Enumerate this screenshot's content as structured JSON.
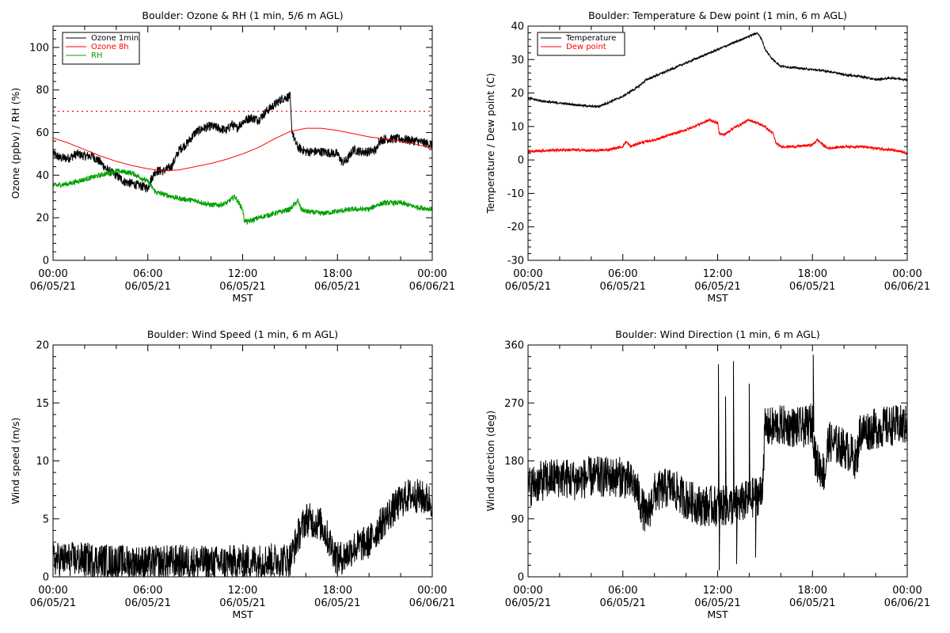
{
  "chart_data": [
    {
      "type": "line",
      "title": "Boulder: Ozone & RH (1 min, 5/6 m AGL)",
      "xlabel": "MST",
      "ylabel": "Ozone (ppbv) / RH (%)",
      "xlim": [
        0,
        24
      ],
      "ylim": [
        0,
        110
      ],
      "yticks": [
        0,
        20,
        40,
        60,
        80,
        100
      ],
      "x_tick_labels": [
        [
          "00:00",
          "06/05/21"
        ],
        [
          "06:00",
          "06/05/21"
        ],
        [
          "12:00",
          "06/05/21"
        ],
        [
          "18:00",
          "06/05/21"
        ],
        [
          "00:00",
          "06/06/21"
        ]
      ],
      "legend_position": "top-left",
      "reference_line": {
        "y": 70,
        "style": "dotted",
        "color": "#ff0000"
      },
      "series": [
        {
          "name": "Ozone 1min",
          "color": "#000000",
          "noise": 2.2,
          "points": [
            [
              0,
              50
            ],
            [
              0.5,
              48
            ],
            [
              1,
              48
            ],
            [
              1.5,
              50
            ],
            [
              2,
              49
            ],
            [
              2.5,
              49
            ],
            [
              3,
              46
            ],
            [
              3.5,
              42
            ],
            [
              4,
              40
            ],
            [
              4.5,
              37
            ],
            [
              5,
              36
            ],
            [
              5.5,
              35
            ],
            [
              6,
              34
            ],
            [
              6.2,
              38
            ],
            [
              6.5,
              42
            ],
            [
              7,
              42
            ],
            [
              7.5,
              44
            ],
            [
              8,
              52
            ],
            [
              8.5,
              55
            ],
            [
              9,
              60
            ],
            [
              9.5,
              62
            ],
            [
              10,
              63
            ],
            [
              10.5,
              62
            ],
            [
              11,
              61
            ],
            [
              11.3,
              64
            ],
            [
              11.6,
              62
            ],
            [
              12,
              65
            ],
            [
              12.5,
              67
            ],
            [
              13,
              66
            ],
            [
              13.5,
              70
            ],
            [
              14,
              73
            ],
            [
              14.5,
              76
            ],
            [
              15,
              77
            ],
            [
              15.1,
              62
            ],
            [
              15.3,
              56
            ],
            [
              15.5,
              53
            ],
            [
              16,
              51
            ],
            [
              17,
              51
            ],
            [
              18,
              50
            ],
            [
              18.3,
              46
            ],
            [
              18.6,
              47
            ],
            [
              19,
              52
            ],
            [
              19.5,
              51
            ],
            [
              20,
              51
            ],
            [
              20.5,
              52
            ],
            [
              20.6,
              56
            ],
            [
              21,
              57
            ],
            [
              22,
              57
            ],
            [
              23,
              56
            ],
            [
              23.6,
              55
            ],
            [
              24,
              54
            ]
          ]
        },
        {
          "name": "Ozone 8h",
          "color": "#ff0000",
          "noise": 0,
          "points": [
            [
              0,
              57.5
            ],
            [
              1,
              55
            ],
            [
              2,
              52
            ],
            [
              3,
              49
            ],
            [
              4,
              46.5
            ],
            [
              5,
              44.5
            ],
            [
              6,
              43
            ],
            [
              7,
              42
            ],
            [
              8,
              42.5
            ],
            [
              9,
              44
            ],
            [
              10,
              45.5
            ],
            [
              11,
              47.5
            ],
            [
              12,
              50
            ],
            [
              13,
              53
            ],
            [
              14,
              57
            ],
            [
              15,
              60.5
            ],
            [
              16,
              62
            ],
            [
              17,
              62
            ],
            [
              18,
              61
            ],
            [
              19,
              59.5
            ],
            [
              20,
              58
            ],
            [
              21,
              57
            ],
            [
              22,
              56
            ],
            [
              23,
              54.5
            ],
            [
              24,
              52.5
            ]
          ]
        },
        {
          "name": "RH",
          "color": "#00a000",
          "noise": 1.2,
          "points": [
            [
              0,
              35
            ],
            [
              1,
              36
            ],
            [
              2,
              38
            ],
            [
              3,
              40
            ],
            [
              4,
              42
            ],
            [
              5,
              41
            ],
            [
              5.5,
              39
            ],
            [
              6,
              37
            ],
            [
              6.5,
              32
            ],
            [
              7,
              31
            ],
            [
              8,
              29
            ],
            [
              9,
              28
            ],
            [
              10,
              26
            ],
            [
              10.5,
              26
            ],
            [
              11,
              27
            ],
            [
              11.5,
              30
            ],
            [
              12,
              24
            ],
            [
              12.1,
              19
            ],
            [
              12.3,
              18
            ],
            [
              13,
              20
            ],
            [
              14,
              22
            ],
            [
              15,
              24
            ],
            [
              15.5,
              28
            ],
            [
              15.7,
              24
            ],
            [
              16,
              23
            ],
            [
              17,
              22
            ],
            [
              18,
              23
            ],
            [
              19,
              24
            ],
            [
              20,
              24
            ],
            [
              20.5,
              26
            ],
            [
              21,
              27
            ],
            [
              22,
              27
            ],
            [
              23,
              25
            ],
            [
              24,
              24
            ]
          ]
        }
      ]
    },
    {
      "type": "line",
      "title": "Boulder: Temperature & Dew point (1 min, 6 m AGL)",
      "xlabel": "MST",
      "ylabel": "Temperature / Dew point (C)",
      "xlim": [
        0,
        24
      ],
      "ylim": [
        -30,
        40
      ],
      "yticks": [
        -30,
        -20,
        -10,
        0,
        10,
        20,
        30,
        40
      ],
      "x_tick_labels": [
        [
          "00:00",
          "06/05/21"
        ],
        [
          "06:00",
          "06/05/21"
        ],
        [
          "12:00",
          "06/05/21"
        ],
        [
          "18:00",
          "06/05/21"
        ],
        [
          "00:00",
          "06/06/21"
        ]
      ],
      "legend_position": "top-left",
      "series": [
        {
          "name": "Temperature",
          "color": "#000000",
          "noise": 0.3,
          "points": [
            [
              0,
              18.5
            ],
            [
              1,
              17.5
            ],
            [
              2,
              17
            ],
            [
              3,
              16.5
            ],
            [
              4,
              16
            ],
            [
              4.5,
              16
            ],
            [
              5,
              17
            ],
            [
              6,
              19
            ],
            [
              7,
              22
            ],
            [
              7.5,
              24
            ],
            [
              8,
              25
            ],
            [
              9,
              27
            ],
            [
              10,
              29
            ],
            [
              11,
              31
            ],
            [
              12,
              33
            ],
            [
              13,
              35
            ],
            [
              14,
              37
            ],
            [
              14.5,
              38
            ],
            [
              14.8,
              36
            ],
            [
              15,
              33
            ],
            [
              15.5,
              30
            ],
            [
              16,
              28
            ],
            [
              17,
              27.5
            ],
            [
              18,
              27
            ],
            [
              19,
              26.5
            ],
            [
              20,
              25.5
            ],
            [
              21,
              25
            ],
            [
              22,
              24
            ],
            [
              23,
              24.5
            ],
            [
              24,
              24
            ]
          ]
        },
        {
          "name": "Dew point",
          "color": "#ff0000",
          "noise": 0.4,
          "points": [
            [
              0,
              2.5
            ],
            [
              1,
              2.8
            ],
            [
              2,
              3
            ],
            [
              3,
              3
            ],
            [
              4,
              2.8
            ],
            [
              5,
              3
            ],
            [
              5.5,
              3.5
            ],
            [
              6,
              4
            ],
            [
              6.2,
              5.5
            ],
            [
              6.5,
              4
            ],
            [
              7,
              5
            ],
            [
              8,
              6
            ],
            [
              9,
              7.5
            ],
            [
              10,
              9
            ],
            [
              11,
              11
            ],
            [
              11.5,
              12
            ],
            [
              12,
              11
            ],
            [
              12.1,
              8
            ],
            [
              12.4,
              7.5
            ],
            [
              13,
              9.5
            ],
            [
              14,
              12
            ],
            [
              14.5,
              11
            ],
            [
              15,
              10
            ],
            [
              15.2,
              9
            ],
            [
              15.5,
              8
            ],
            [
              15.7,
              5
            ],
            [
              16,
              4
            ],
            [
              17,
              4
            ],
            [
              18,
              4.5
            ],
            [
              18.3,
              6
            ],
            [
              18.8,
              4
            ],
            [
              19,
              3.5
            ],
            [
              20,
              4
            ],
            [
              21,
              4
            ],
            [
              22,
              3.5
            ],
            [
              23,
              3
            ],
            [
              24,
              2
            ]
          ]
        }
      ]
    },
    {
      "type": "line",
      "title": "Boulder: Wind Speed (1 min, 6 m AGL)",
      "xlabel": "MST",
      "ylabel": "Wind speed (m/s)",
      "xlim": [
        0,
        24
      ],
      "ylim": [
        0,
        20
      ],
      "yticks": [
        0,
        5,
        10,
        15,
        20
      ],
      "x_tick_labels": [
        [
          "00:00",
          "06/05/21"
        ],
        [
          "06:00",
          "06/05/21"
        ],
        [
          "12:00",
          "06/05/21"
        ],
        [
          "18:00",
          "06/05/21"
        ],
        [
          "00:00",
          "06/06/21"
        ]
      ],
      "series": [
        {
          "name": "",
          "color": "#000000",
          "noise": 1.5,
          "min": 0,
          "points": [
            [
              0,
              1.5
            ],
            [
              2,
              1.5
            ],
            [
              4,
              1.3
            ],
            [
              6,
              1.2
            ],
            [
              8,
              1.3
            ],
            [
              10,
              1.2
            ],
            [
              12,
              1.3
            ],
            [
              13.5,
              1.4
            ],
            [
              15,
              1.5
            ],
            [
              15.5,
              3.5
            ],
            [
              16,
              5
            ],
            [
              17,
              4.5
            ],
            [
              17.5,
              3
            ],
            [
              18,
              1.5
            ],
            [
              18.5,
              1.8
            ],
            [
              19,
              2.5
            ],
            [
              20,
              3
            ],
            [
              20.5,
              4
            ],
            [
              21,
              5
            ],
            [
              22,
              6.5
            ],
            [
              22.5,
              7
            ],
            [
              23,
              7
            ],
            [
              24,
              6.5
            ]
          ]
        }
      ]
    },
    {
      "type": "line",
      "title": "Boulder: Wind Direction (1 min, 6 m AGL)",
      "xlabel": "MST",
      "ylabel": "Wind direction (deg)",
      "xlim": [
        0,
        24
      ],
      "ylim": [
        0,
        360
      ],
      "yticks": [
        0,
        90,
        180,
        270,
        360
      ],
      "x_tick_labels": [
        [
          "00:00",
          "06/05/21"
        ],
        [
          "06:00",
          "06/05/21"
        ],
        [
          "12:00",
          "06/05/21"
        ],
        [
          "18:00",
          "06/05/21"
        ],
        [
          "00:00",
          "06/06/21"
        ]
      ],
      "series": [
        {
          "name": "",
          "color": "#000000",
          "noise": 32,
          "min": 0,
          "max": 360,
          "points": [
            [
              0,
              140
            ],
            [
              1,
              150
            ],
            [
              2,
              155
            ],
            [
              3,
              150
            ],
            [
              4,
              155
            ],
            [
              5,
              155
            ],
            [
              6,
              155
            ],
            [
              6.8,
              140
            ],
            [
              7.2,
              110
            ],
            [
              7.5,
              90
            ],
            [
              8,
              130
            ],
            [
              9,
              140
            ],
            [
              10,
              120
            ],
            [
              11,
              110
            ],
            [
              12,
              110
            ],
            [
              13,
              110
            ],
            [
              14,
              120
            ],
            [
              14.8,
              130
            ],
            [
              15,
              230
            ],
            [
              16,
              235
            ],
            [
              17,
              232
            ],
            [
              17.5,
              232
            ],
            [
              18,
              240
            ],
            [
              18.2,
              180
            ],
            [
              18.8,
              160
            ],
            [
              19,
              210
            ],
            [
              20,
              200
            ],
            [
              20.5,
              190
            ],
            [
              20.8,
              180
            ],
            [
              21,
              225
            ],
            [
              22,
              230
            ],
            [
              23,
              235
            ],
            [
              24,
              235
            ]
          ],
          "spikes": [
            [
              12.05,
              330
            ],
            [
              12.1,
              10
            ],
            [
              12.5,
              280
            ],
            [
              13,
              335
            ],
            [
              13.2,
              20
            ],
            [
              14,
              300
            ],
            [
              14.4,
              30
            ],
            [
              18.05,
              345
            ]
          ]
        }
      ]
    }
  ]
}
